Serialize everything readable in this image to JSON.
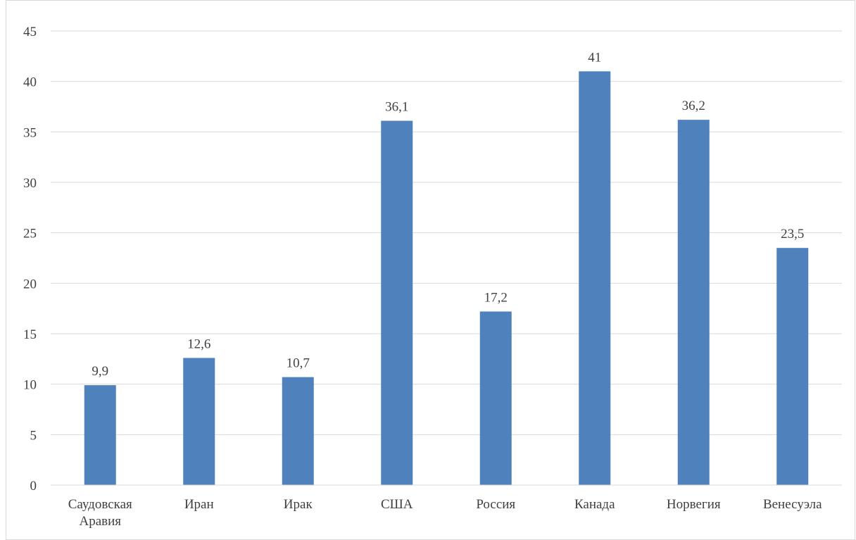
{
  "chart_data": {
    "type": "bar",
    "title": "",
    "xlabel": "",
    "ylabel": "",
    "categories": [
      [
        "Саудовская",
        "Аравия"
      ],
      [
        "Иран"
      ],
      [
        "Ирак"
      ],
      [
        "США"
      ],
      [
        "Россия"
      ],
      [
        "Канада"
      ],
      [
        "Норвегия"
      ],
      [
        "Венесуэла"
      ]
    ],
    "values": [
      9.9,
      12.6,
      10.7,
      36.1,
      17.2,
      41,
      36.2,
      23.5
    ],
    "data_labels": [
      "9,9",
      "12,6",
      "10,7",
      "36,1",
      "17,2",
      "41",
      "36,2",
      "23,5"
    ],
    "ylim": [
      0,
      45
    ],
    "yticks": [
      0,
      5,
      10,
      15,
      20,
      25,
      30,
      35,
      40,
      45
    ],
    "grid": true,
    "legend": "none",
    "bar_color": "#4f81bd",
    "grid_color": "#d9d9d9"
  }
}
